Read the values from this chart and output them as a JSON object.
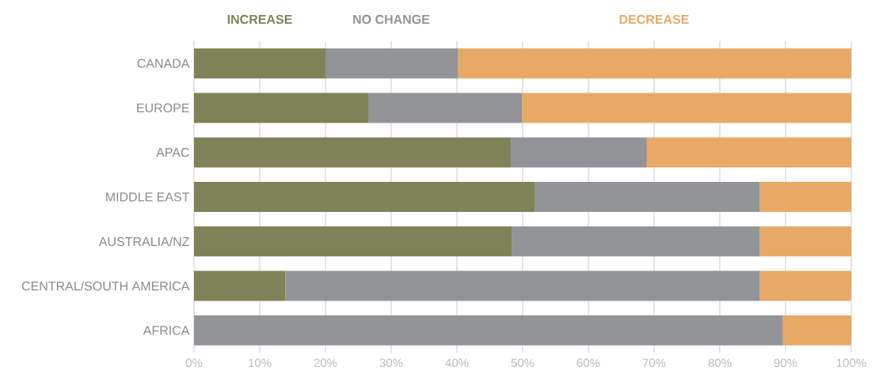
{
  "chart_data": {
    "type": "bar",
    "orientation": "horizontal",
    "stacked": true,
    "categories": [
      "CANADA",
      "EUROPE",
      "APAC",
      "MIDDLE EAST",
      "AUSTRALIA/NZ",
      "CENTRAL/SOUTH AMERICA",
      "AFRICA"
    ],
    "series": [
      {
        "name": "INCREASE",
        "color": "#7f8257",
        "values": [
          20,
          26.6,
          48.2,
          51.9,
          48.4,
          13.9,
          0
        ]
      },
      {
        "name": "NO CHANGE",
        "color": "#939498",
        "values": [
          20.2,
          23.3,
          20.7,
          34.2,
          37.7,
          72.2,
          89.6
        ]
      },
      {
        "name": "DECREASE",
        "color": "#e8a966",
        "values": [
          59.8,
          50.1,
          31.1,
          13.9,
          13.9,
          13.9,
          10.4
        ]
      }
    ],
    "xlim": [
      0,
      100
    ],
    "xticks": [
      {
        "value": 0,
        "label": "0%"
      },
      {
        "value": 10,
        "label": "10%"
      },
      {
        "value": 20,
        "label": "20%"
      },
      {
        "value": 30,
        "label": "30%"
      },
      {
        "value": 40,
        "label": "40%"
      },
      {
        "value": 50,
        "label": "50%"
      },
      {
        "value": 60,
        "label": "60%"
      },
      {
        "value": 70,
        "label": "70%"
      },
      {
        "value": 80,
        "label": "80%"
      },
      {
        "value": 90,
        "label": "90%"
      },
      {
        "value": 100,
        "label": "100%"
      }
    ],
    "grid": "x",
    "legend": "top"
  }
}
